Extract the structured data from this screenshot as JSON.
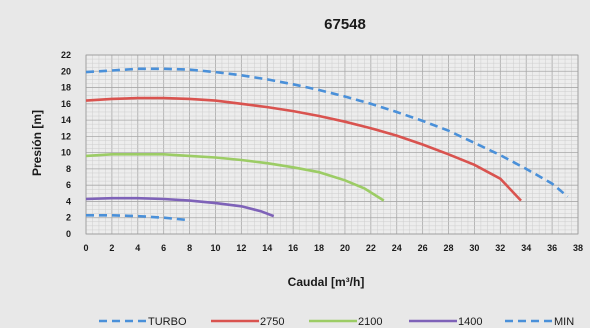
{
  "chart_data": {
    "type": "line",
    "title": "67548",
    "xlabel": "Caudal [m³/h]",
    "ylabel": "Presión [m]",
    "xlim": [
      0,
      38
    ],
    "ylim": [
      0,
      22
    ],
    "x_ticks": [
      "0",
      "2",
      "4",
      "6",
      "8",
      "10",
      "12",
      "14",
      "16",
      "18",
      "20",
      "22",
      "24",
      "26",
      "28",
      "30",
      "32",
      "34",
      "36",
      "38"
    ],
    "y_ticks": [
      "0",
      "2",
      "4",
      "6",
      "8",
      "10",
      "12",
      "14",
      "16",
      "18",
      "20",
      "22"
    ],
    "grid": true,
    "legend_position": "bottom",
    "series": [
      {
        "name": "TURBO",
        "color": "#4a90d9",
        "dash": true,
        "points": [
          [
            0,
            19.9
          ],
          [
            2,
            20.1
          ],
          [
            4,
            20.3
          ],
          [
            6,
            20.3
          ],
          [
            8,
            20.2
          ],
          [
            10,
            19.9
          ],
          [
            12,
            19.5
          ],
          [
            14,
            19.0
          ],
          [
            16,
            18.4
          ],
          [
            18,
            17.7
          ],
          [
            20,
            16.9
          ],
          [
            22,
            16.0
          ],
          [
            24,
            15.0
          ],
          [
            26,
            13.9
          ],
          [
            28,
            12.7
          ],
          [
            30,
            11.2
          ],
          [
            32,
            9.7
          ],
          [
            34,
            8.0
          ],
          [
            36,
            6.2
          ],
          [
            37.2,
            4.6
          ]
        ]
      },
      {
        "name": "2750",
        "color": "#d9534f",
        "dash": false,
        "points": [
          [
            0,
            16.4
          ],
          [
            2,
            16.6
          ],
          [
            4,
            16.7
          ],
          [
            6,
            16.7
          ],
          [
            8,
            16.6
          ],
          [
            10,
            16.4
          ],
          [
            12,
            16.0
          ],
          [
            14,
            15.6
          ],
          [
            16,
            15.1
          ],
          [
            18,
            14.5
          ],
          [
            20,
            13.8
          ],
          [
            22,
            13.0
          ],
          [
            24,
            12.1
          ],
          [
            26,
            11.0
          ],
          [
            28,
            9.8
          ],
          [
            30,
            8.5
          ],
          [
            32,
            6.8
          ],
          [
            33.6,
            4.1
          ]
        ]
      },
      {
        "name": "2100",
        "color": "#9ccc65",
        "dash": false,
        "points": [
          [
            0,
            9.6
          ],
          [
            2,
            9.8
          ],
          [
            4,
            9.8
          ],
          [
            6,
            9.8
          ],
          [
            8,
            9.6
          ],
          [
            10,
            9.4
          ],
          [
            12,
            9.1
          ],
          [
            14,
            8.7
          ],
          [
            16,
            8.2
          ],
          [
            18,
            7.6
          ],
          [
            20,
            6.6
          ],
          [
            21.5,
            5.6
          ],
          [
            23,
            4.1
          ]
        ]
      },
      {
        "name": "1400",
        "color": "#7e62b8",
        "dash": false,
        "points": [
          [
            0,
            4.3
          ],
          [
            2,
            4.4
          ],
          [
            4,
            4.4
          ],
          [
            6,
            4.3
          ],
          [
            8,
            4.1
          ],
          [
            10,
            3.8
          ],
          [
            12,
            3.4
          ],
          [
            13.5,
            2.8
          ],
          [
            14.5,
            2.2
          ]
        ]
      },
      {
        "name": "MIN",
        "color": "#4a90d9",
        "dash": true,
        "points": [
          [
            0,
            2.3
          ],
          [
            2,
            2.3
          ],
          [
            4,
            2.2
          ],
          [
            6,
            2.0
          ],
          [
            8,
            1.7
          ]
        ]
      }
    ]
  }
}
